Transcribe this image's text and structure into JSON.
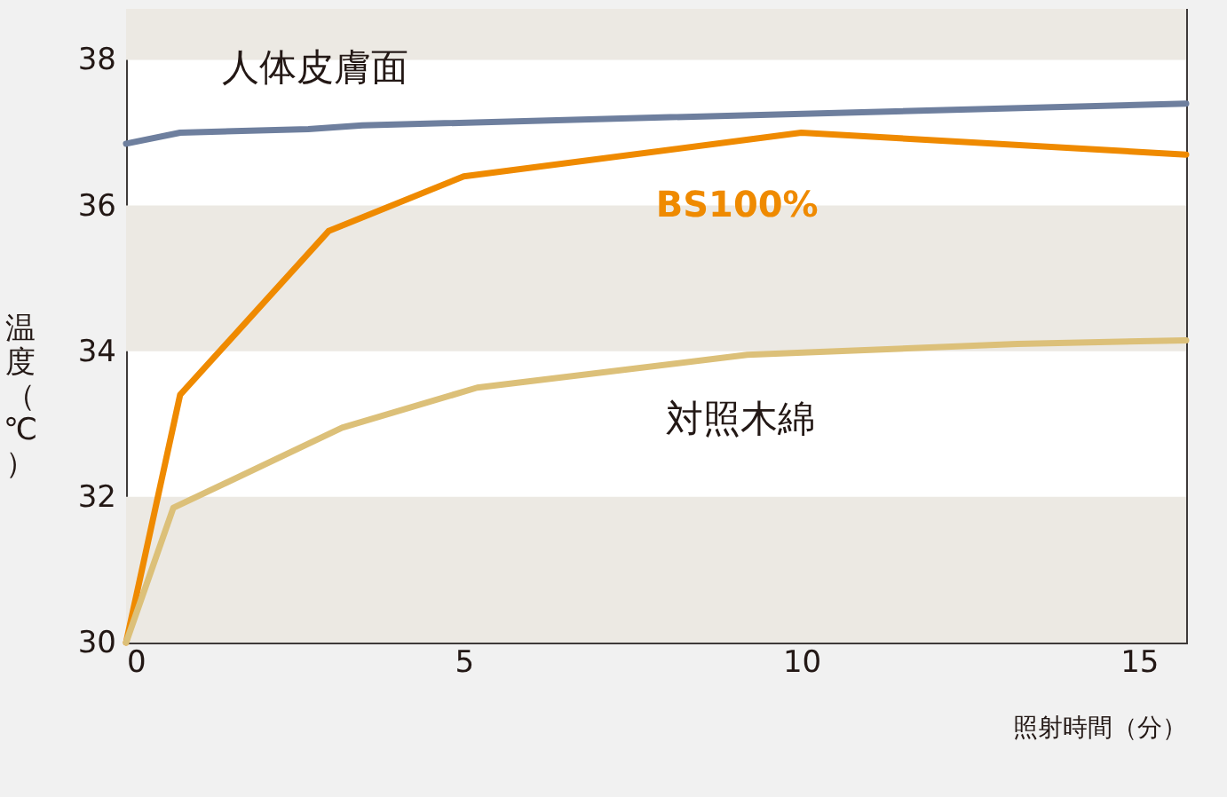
{
  "chart_data": {
    "type": "line",
    "xlabel": "照射時間（分）",
    "ylabel": "温度（℃）",
    "xlim": [
      0,
      15.7
    ],
    "xticks": [
      0,
      5,
      10,
      15
    ],
    "ylim": [
      30,
      38.7
    ],
    "yticks": [
      30,
      32,
      34,
      36,
      38
    ],
    "bands": [
      {
        "axis": "y",
        "from": 30,
        "to": 32,
        "color": "#ece9e3"
      },
      {
        "axis": "y",
        "from": 34,
        "to": 36,
        "color": "#ece9e3"
      },
      {
        "axis": "y",
        "from": 38,
        "to": 38.7,
        "color": "#ece9e3"
      }
    ],
    "series": [
      {
        "name": "人体皮膚面",
        "color": "#6e7f9e",
        "x": [
          0,
          0.8,
          2.7,
          3.5,
          15.7
        ],
        "values": [
          36.85,
          37.0,
          37.05,
          37.1,
          37.4
        ]
      },
      {
        "name": "BS100%",
        "color": "#ef8a00",
        "x": [
          0,
          0.8,
          3.0,
          5.0,
          10.0,
          15.7
        ],
        "values": [
          30,
          33.4,
          35.65,
          36.4,
          37.0,
          36.7
        ]
      },
      {
        "name": "対照木綿",
        "color": "#dcc079",
        "x": [
          0,
          0.7,
          3.2,
          5.2,
          9.2,
          13.2,
          15.7
        ],
        "values": [
          30,
          31.85,
          32.95,
          33.5,
          33.95,
          34.1,
          34.15
        ]
      }
    ]
  }
}
